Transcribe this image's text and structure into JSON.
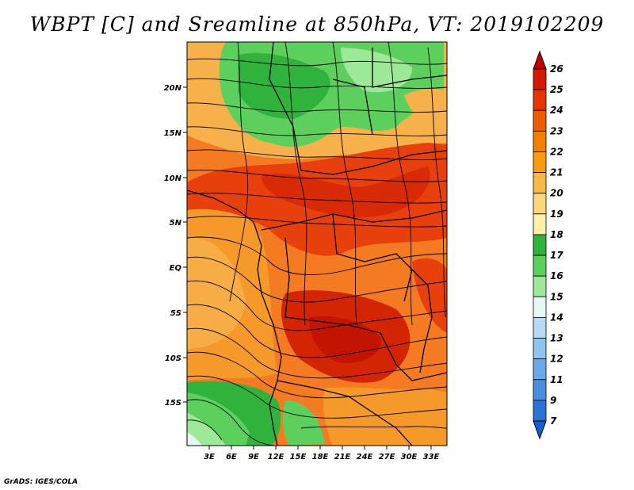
{
  "title": "WBPT [C] and Sreamline at 850hPa, VT: 2019102209",
  "credit": "GrADS: IGES/COLA",
  "map": {
    "lat_labels": [
      "20N",
      "15N",
      "10N",
      "5N",
      "EQ",
      "5S",
      "10S",
      "15S"
    ],
    "lon_labels": [
      "3E",
      "6E",
      "9E",
      "12E",
      "15E",
      "18E",
      "21E",
      "24E",
      "27E",
      "30E",
      "33E"
    ]
  },
  "colorbar": {
    "levels": [
      "26",
      "25",
      "24",
      "23",
      "22",
      "21",
      "20",
      "19",
      "18",
      "17",
      "16",
      "15",
      "14",
      "13",
      "12",
      "11",
      "9",
      "7"
    ],
    "colors": [
      "#c00000",
      "#d41a00",
      "#e63300",
      "#f05a00",
      "#f57e00",
      "#fa9a10",
      "#f7b845",
      "#fbd67a",
      "#fdf0a8",
      "#2fb33c",
      "#5ccf5c",
      "#9ee89a",
      "#e6f8f6",
      "#b8daf5",
      "#90c4f0",
      "#6aaaea",
      "#4a8ee0",
      "#2a72d6",
      "#165ec8"
    ]
  }
}
